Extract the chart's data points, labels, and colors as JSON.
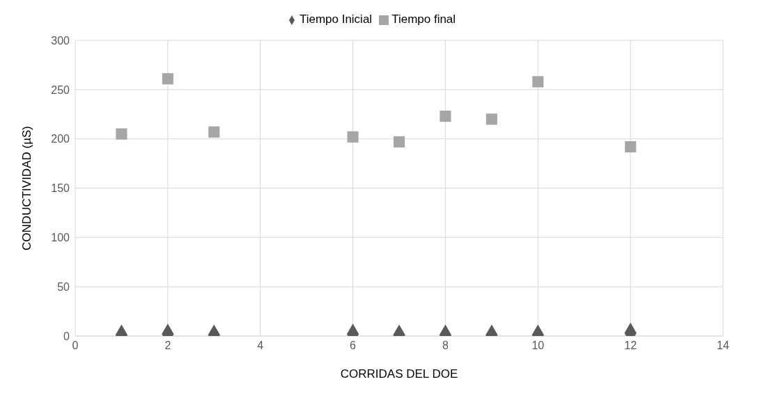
{
  "chart_data": {
    "type": "scatter",
    "xlabel": "CORRIDAS DEL DOE",
    "ylabel": "CONDUCTIVIDAD (µS)",
    "x": [
      1,
      2,
      3,
      6,
      7,
      8,
      9,
      10,
      12
    ],
    "series": [
      {
        "name": "Tiempo Inicial",
        "color": "#595959",
        "marker": "diamond",
        "values": [
          1,
          2,
          1,
          2,
          1,
          1,
          1,
          1,
          3
        ]
      },
      {
        "name": "Tiempo final",
        "color": "#a6a6a6",
        "marker": "square",
        "values": [
          205,
          261,
          207,
          202,
          197,
          223,
          220,
          258,
          192
        ]
      }
    ],
    "xlim": [
      0,
      14
    ],
    "xticks": [
      0,
      2,
      4,
      6,
      8,
      10,
      12,
      14
    ],
    "ylim": [
      0,
      300
    ],
    "yticks": [
      0,
      50,
      100,
      150,
      200,
      250,
      300
    ],
    "grid": true,
    "legend": "top"
  }
}
